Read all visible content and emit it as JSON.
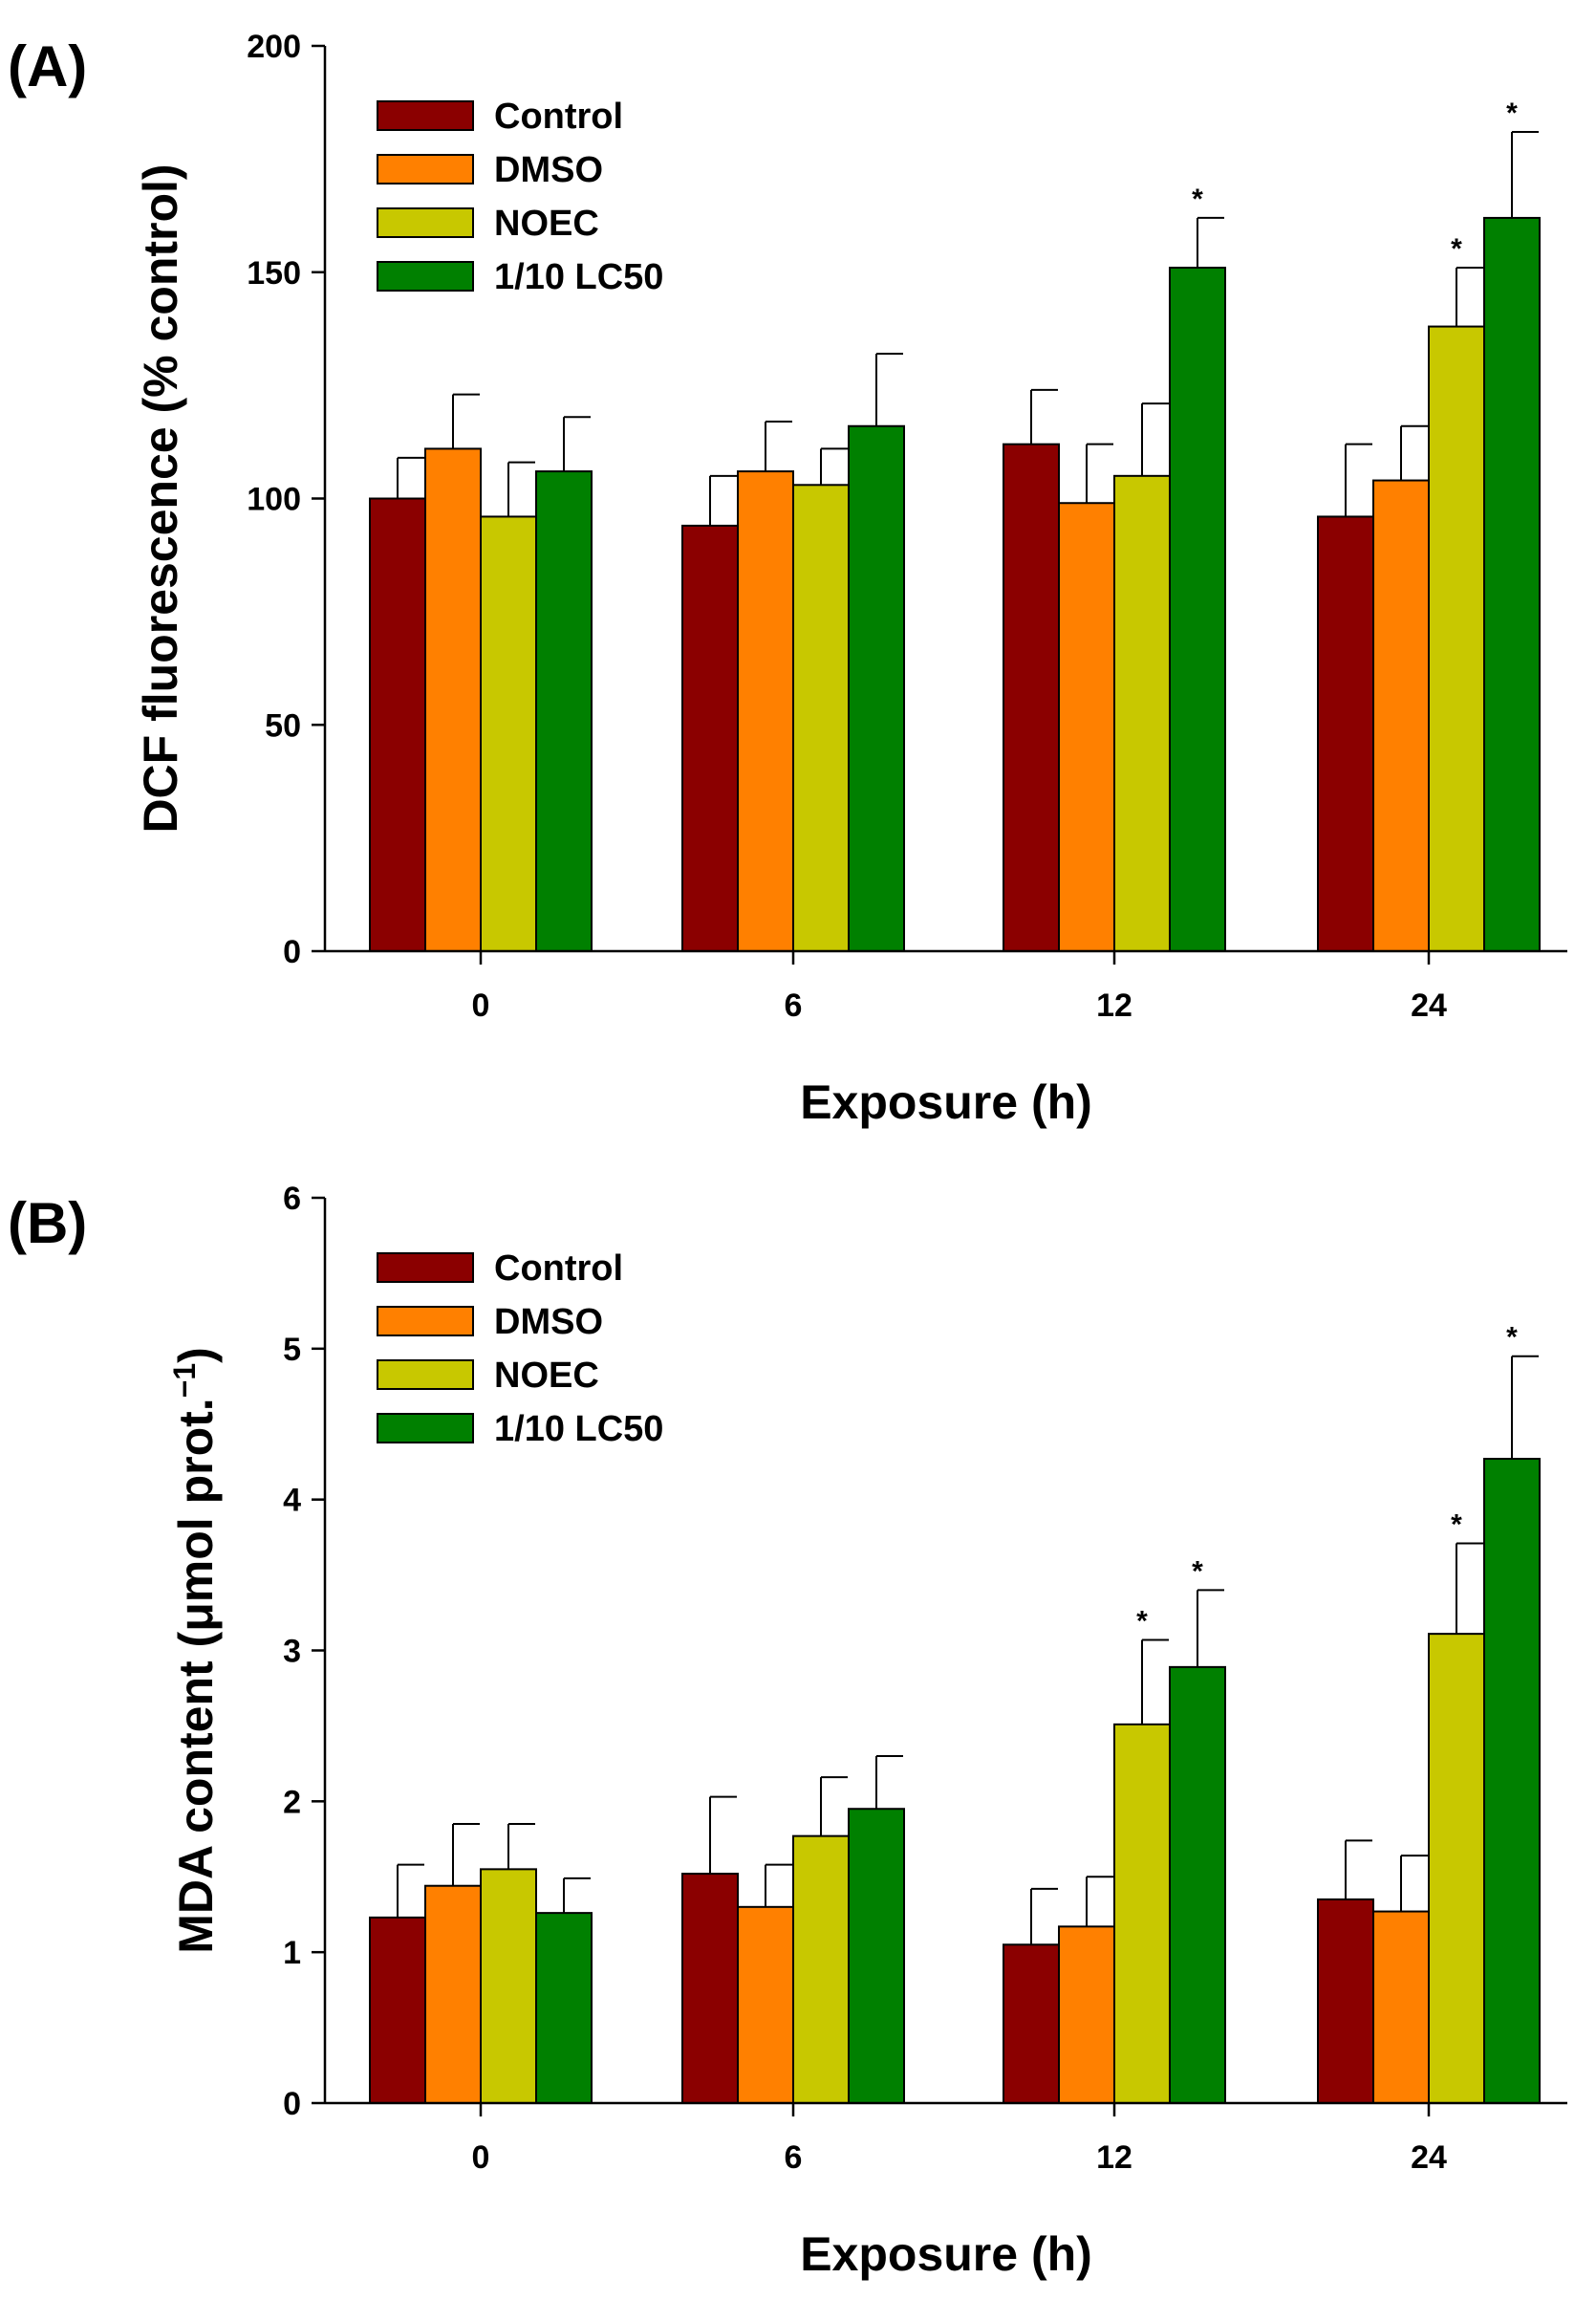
{
  "chart_data": [
    {
      "panel_label": "(A)",
      "type": "bar",
      "categories": [
        "0",
        "6",
        "12",
        "24"
      ],
      "xlabel": "Exposure (h)",
      "ylabel": "DCF fluorescence (% control)",
      "ylim": [
        0,
        200
      ],
      "yticks": [
        "0",
        "50",
        "100",
        "150",
        "200"
      ],
      "legend_position": "top-left",
      "grid": false,
      "significance_marker": "*",
      "series": [
        {
          "name": "Control",
          "color": "#8b0000",
          "values": [
            100,
            94,
            112,
            96
          ],
          "errors": [
            9,
            11,
            12,
            16
          ],
          "significant": [
            false,
            false,
            false,
            false
          ]
        },
        {
          "name": "DMSO",
          "color": "#ff8000",
          "values": [
            111,
            106,
            99,
            104
          ],
          "errors": [
            12,
            11,
            13,
            12
          ],
          "significant": [
            false,
            false,
            false,
            false
          ]
        },
        {
          "name": "NOEC",
          "color": "#c8c800",
          "values": [
            96,
            103,
            105,
            138
          ],
          "errors": [
            12,
            8,
            16,
            13
          ],
          "significant": [
            false,
            false,
            false,
            true
          ]
        },
        {
          "name": "1/10 LC50",
          "color": "#008000",
          "values": [
            106,
            116,
            151,
            162
          ],
          "errors": [
            12,
            16,
            11,
            19
          ],
          "significant": [
            false,
            false,
            true,
            true
          ]
        }
      ]
    },
    {
      "panel_label": "(B)",
      "type": "bar",
      "categories": [
        "0",
        "6",
        "12",
        "24"
      ],
      "xlabel": "Exposure (h)",
      "ylabel": "MDA content (μmol prot.",
      "ylabel_superscript": "−1",
      "ylabel_close": ")",
      "ylim": [
        0,
        6
      ],
      "yticks": [
        "0",
        "1",
        "2",
        "3",
        "4",
        "5",
        "6"
      ],
      "legend_position": "top-left",
      "grid": false,
      "significance_marker": "*",
      "series": [
        {
          "name": "Control",
          "color": "#8b0000",
          "values": [
            1.23,
            1.52,
            1.05,
            1.35
          ],
          "errors": [
            0.35,
            0.51,
            0.37,
            0.39
          ],
          "significant": [
            false,
            false,
            false,
            false
          ]
        },
        {
          "name": "DMSO",
          "color": "#ff8000",
          "values": [
            1.44,
            1.3,
            1.17,
            1.27
          ],
          "errors": [
            0.41,
            0.28,
            0.33,
            0.37
          ],
          "significant": [
            false,
            false,
            false,
            false
          ]
        },
        {
          "name": "NOEC",
          "color": "#c8c800",
          "values": [
            1.55,
            1.77,
            2.51,
            3.11
          ],
          "errors": [
            0.3,
            0.39,
            0.56,
            0.6
          ],
          "significant": [
            false,
            false,
            true,
            true
          ]
        },
        {
          "name": "1/10 LC50",
          "color": "#008000",
          "values": [
            1.26,
            1.95,
            2.89,
            4.27
          ],
          "errors": [
            0.23,
            0.35,
            0.51,
            0.68
          ],
          "significant": [
            false,
            false,
            true,
            true
          ]
        }
      ]
    }
  ]
}
